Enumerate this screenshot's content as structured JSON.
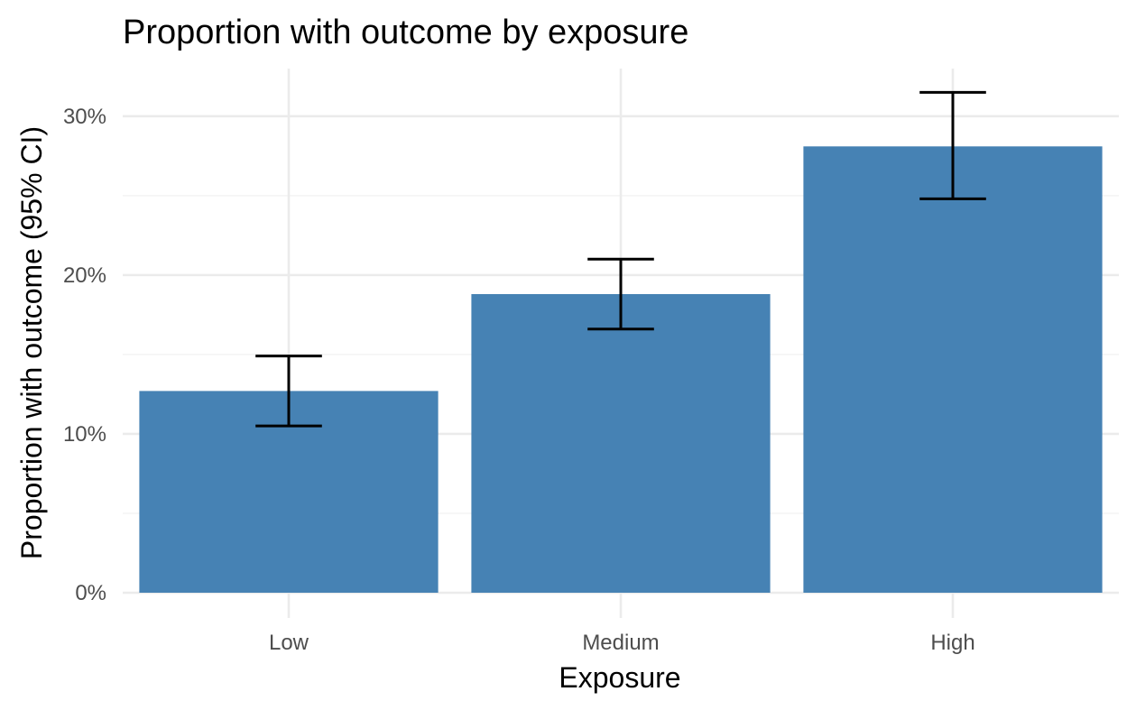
{
  "chart_data": {
    "type": "bar",
    "title": "Proportion with outcome by exposure",
    "xlabel": "Exposure",
    "ylabel": "Proportion with outcome (95% CI)",
    "categories": [
      "Low",
      "Medium",
      "High"
    ],
    "values": [
      0.127,
      0.188,
      0.281
    ],
    "ci_lower": [
      0.105,
      0.166,
      0.248
    ],
    "ci_upper": [
      0.149,
      0.21,
      0.315
    ],
    "ylim": [
      0,
      0.33
    ],
    "yticks": [
      0,
      0.1,
      0.2,
      0.3
    ],
    "ytick_labels": [
      "0%",
      "10%",
      "20%",
      "30%"
    ],
    "bar_color": "#4682b4",
    "grid": true,
    "legend": "none"
  }
}
